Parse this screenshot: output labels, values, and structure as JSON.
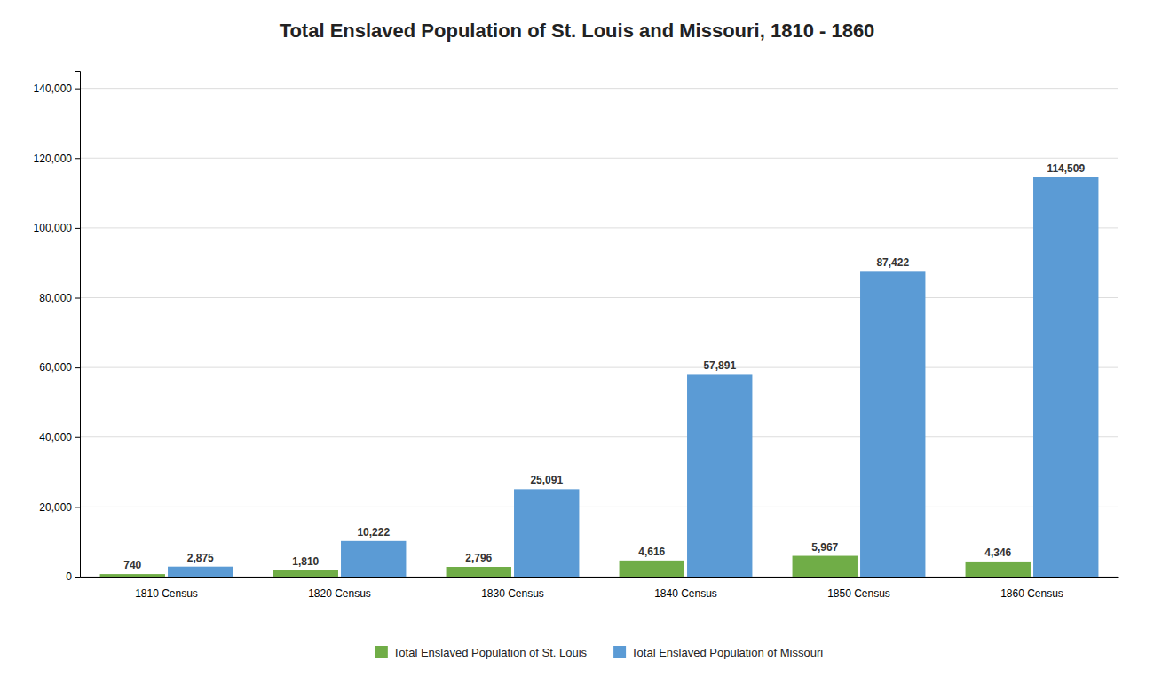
{
  "chart_data": {
    "type": "bar",
    "title": "Total Enslaved Population of St. Louis and Missouri, 1810 - 1860",
    "categories": [
      "1810 Census",
      "1820 Census",
      "1830 Census",
      "1840 Census",
      "1850 Census",
      "1860 Census"
    ],
    "series": [
      {
        "name": "Total Enslaved Population of St. Louis",
        "color": "#70AD47",
        "values": [
          740,
          1810,
          2796,
          4616,
          5967,
          4346
        ],
        "value_labels": [
          "740",
          "1,810",
          "2,796",
          "4,616",
          "5,967",
          "4,346"
        ]
      },
      {
        "name": "Total Enslaved Population of Missouri",
        "color": "#5B9BD5",
        "values": [
          2875,
          10222,
          25091,
          57891,
          87422,
          114509
        ],
        "value_labels": [
          "2,875",
          "10,222",
          "25,091",
          "57,891",
          "87,422",
          "114,509"
        ]
      }
    ],
    "ylim": [
      0,
      145000
    ],
    "yticks": [
      0,
      {
        "value": 20000,
        "label": "20,000"
      },
      {
        "value": 40000,
        "label": "40,000"
      },
      {
        "value": 60000,
        "label": "60,000"
      },
      {
        "value": 80000,
        "label": "80,000"
      },
      {
        "value": 100000,
        "label": "100,000"
      },
      {
        "value": 120000,
        "label": "120,000"
      },
      {
        "value": 140000,
        "label": "140,000"
      }
    ],
    "grid": true,
    "data_labels": true,
    "legend": "lower center"
  }
}
